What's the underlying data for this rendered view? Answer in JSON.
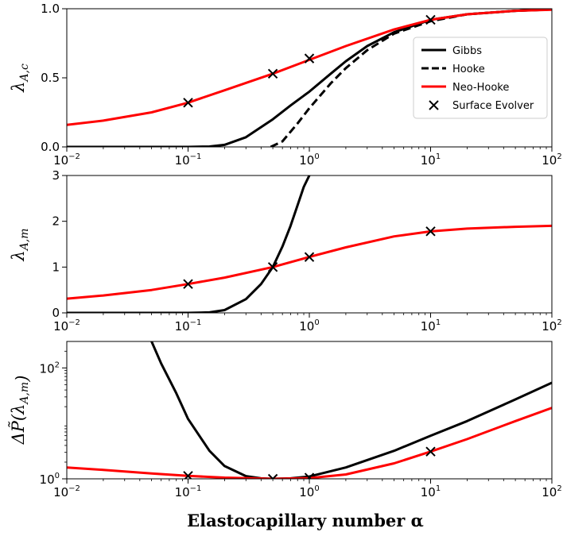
{
  "xlabel": "Elastocapillary number α",
  "legend_labels": [
    "Gibbs",
    "Hooke",
    "Neo-Hooke",
    "Surface Evolver"
  ],
  "colors": {
    "gibbs": "#000000",
    "hooke": "#000000",
    "neo_hooke": "#ff0000",
    "surface_evolver": "#000000"
  },
  "chart_data": [
    {
      "type": "line",
      "ylabel": "λ_{A,c}",
      "xscale": "log",
      "xlim": [
        0.01,
        100
      ],
      "ylim": [
        0,
        1
      ],
      "x_ticks": [
        "10",
        "10",
        "10",
        "10",
        "10"
      ],
      "x_tick_exponents": [
        "−2",
        "−1",
        "0",
        "1",
        "2"
      ],
      "y_ticks": [
        "0.0",
        "0.5",
        "1.0"
      ],
      "legend_placement": "right",
      "series": [
        {
          "name": "Gibbs",
          "style": "solid",
          "x": [
            0.01,
            0.1,
            0.15,
            0.2,
            0.3,
            0.5,
            0.7,
            1,
            1.5,
            2,
            3,
            5,
            10,
            20,
            50,
            100
          ],
          "y": [
            0,
            0,
            0.003,
            0.015,
            0.07,
            0.2,
            0.3,
            0.4,
            0.53,
            0.62,
            0.73,
            0.83,
            0.92,
            0.96,
            0.985,
            0.995
          ]
        },
        {
          "name": "Hooke",
          "style": "dashed",
          "x": [
            0.48,
            0.6,
            0.8,
            1,
            1.5,
            2,
            3,
            5,
            10,
            20,
            50,
            100
          ],
          "y": [
            0,
            0.04,
            0.17,
            0.28,
            0.46,
            0.57,
            0.7,
            0.82,
            0.91,
            0.96,
            0.985,
            0.995
          ]
        },
        {
          "name": "Neo-Hooke",
          "style": "solid",
          "x": [
            0.01,
            0.02,
            0.05,
            0.1,
            0.2,
            0.5,
            1,
            2,
            5,
            10,
            20,
            50,
            100
          ],
          "y": [
            0.16,
            0.19,
            0.25,
            0.32,
            0.41,
            0.53,
            0.63,
            0.73,
            0.85,
            0.92,
            0.96,
            0.985,
            0.993
          ]
        },
        {
          "name": "Surface Evolver",
          "type": "scatter",
          "marker": "x",
          "x": [
            0.1,
            0.5,
            1,
            10
          ],
          "y": [
            0.32,
            0.53,
            0.64,
            0.92
          ]
        }
      ]
    },
    {
      "type": "line",
      "ylabel": "λ_{A,m}",
      "xscale": "log",
      "xlim": [
        0.01,
        100
      ],
      "ylim": [
        0,
        3
      ],
      "x_ticks": [
        "10",
        "10",
        "10",
        "10",
        "10"
      ],
      "x_tick_exponents": [
        "−2",
        "−1",
        "0",
        "1",
        "2"
      ],
      "y_ticks": [
        "0",
        "1",
        "2",
        "3"
      ],
      "series": [
        {
          "name": "Gibbs",
          "style": "solid",
          "x": [
            0.01,
            0.1,
            0.15,
            0.2,
            0.3,
            0.4,
            0.5,
            0.6,
            0.7,
            0.8,
            0.9,
            1.0
          ],
          "y": [
            0,
            0,
            0.01,
            0.06,
            0.3,
            0.63,
            1.0,
            1.45,
            1.9,
            2.35,
            2.75,
            3.0
          ]
        },
        {
          "name": "Neo-Hooke",
          "style": "solid",
          "x": [
            0.01,
            0.02,
            0.05,
            0.1,
            0.2,
            0.5,
            1,
            2,
            5,
            10,
            20,
            50,
            100
          ],
          "y": [
            0.31,
            0.38,
            0.5,
            0.63,
            0.77,
            1.0,
            1.22,
            1.43,
            1.67,
            1.78,
            1.84,
            1.88,
            1.9
          ]
        },
        {
          "name": "Surface Evolver",
          "type": "scatter",
          "marker": "x",
          "x": [
            0.1,
            0.5,
            1,
            10
          ],
          "y": [
            0.63,
            1.0,
            1.22,
            1.78
          ]
        }
      ]
    },
    {
      "type": "line",
      "ylabel": "ΔP̃(λ_{A,m})",
      "xscale": "log",
      "yscale": "log",
      "xlim": [
        0.01,
        100
      ],
      "ylim": [
        1,
        300
      ],
      "x_ticks": [
        "10",
        "10",
        "10",
        "10",
        "10"
      ],
      "x_tick_exponents": [
        "−2",
        "−1",
        "0",
        "1",
        "2"
      ],
      "y_ticks": [
        "10",
        "10"
      ],
      "y_tick_exponents": [
        "0",
        "2"
      ],
      "series": [
        {
          "name": "Gibbs",
          "style": "solid",
          "x": [
            0.05,
            0.06,
            0.08,
            0.1,
            0.15,
            0.2,
            0.3,
            0.4,
            0.5,
            0.7,
            1,
            2,
            5,
            10,
            20,
            50,
            100
          ],
          "y": [
            300,
            120,
            35,
            12,
            3.2,
            1.7,
            1.12,
            1.02,
            1.0,
            1.02,
            1.1,
            1.6,
            3.2,
            6,
            11,
            27,
            54
          ]
        },
        {
          "name": "Neo-Hooke",
          "style": "solid",
          "x": [
            0.01,
            0.02,
            0.05,
            0.1,
            0.2,
            0.5,
            1,
            2,
            5,
            10,
            20,
            50,
            100
          ],
          "y": [
            1.6,
            1.45,
            1.25,
            1.13,
            1.05,
            1.0,
            1.03,
            1.2,
            1.9,
            3.1,
            5.2,
            11,
            19
          ]
        },
        {
          "name": "Surface Evolver",
          "type": "scatter",
          "marker": "x",
          "x": [
            0.1,
            0.5,
            1,
            10
          ],
          "y": [
            1.13,
            1.0,
            1.05,
            3.1
          ]
        }
      ]
    }
  ]
}
